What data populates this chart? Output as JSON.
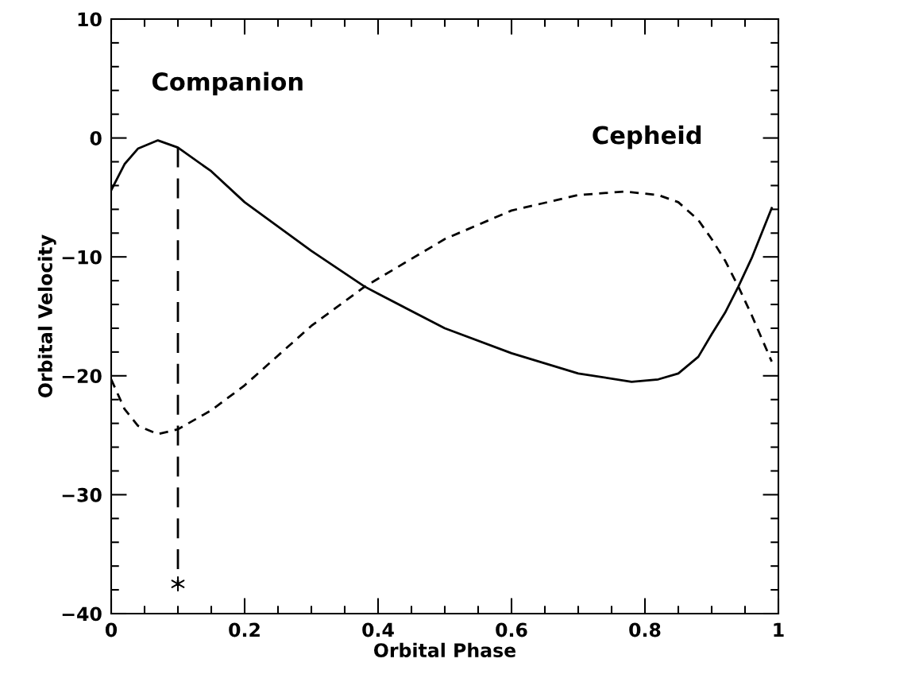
{
  "chart_data": {
    "type": "line",
    "xlabel": "Orbital Phase",
    "ylabel": "Orbital Velocity",
    "xlim": [
      0,
      1
    ],
    "ylim": [
      -40,
      10
    ],
    "xticks": [
      0,
      0.2,
      0.4,
      0.6,
      0.8,
      1
    ],
    "yticks": [
      -40,
      -30,
      -20,
      -10,
      0,
      10
    ],
    "grid": false,
    "legend": false,
    "marker": "none",
    "series": [
      {
        "name": "Companion",
        "color": "#000000",
        "line_style": "solid",
        "x": [
          0,
          0.02,
          0.04,
          0.07,
          0.1,
          0.15,
          0.2,
          0.3,
          0.38,
          0.4,
          0.5,
          0.6,
          0.7,
          0.78,
          0.82,
          0.85,
          0.88,
          0.9,
          0.92,
          0.94,
          0.96,
          0.99
        ],
        "values": [
          -4.4,
          -2.2,
          -0.9,
          -0.2,
          -0.8,
          -2.8,
          -5.4,
          -9.5,
          -12.5,
          -13.1,
          -16,
          -18.1,
          -19.8,
          -20.5,
          -20.3,
          -19.8,
          -18.4,
          -16.5,
          -14.7,
          -12.5,
          -10.1,
          -5.9
        ]
      },
      {
        "name": "Cepheid",
        "color": "#000000",
        "line_style": "dashed",
        "x": [
          0,
          0.02,
          0.04,
          0.07,
          0.1,
          0.15,
          0.2,
          0.3,
          0.38,
          0.5,
          0.6,
          0.7,
          0.77,
          0.82,
          0.85,
          0.88,
          0.9,
          0.92,
          0.94,
          0.96,
          0.99
        ],
        "values": [
          -20.3,
          -22.8,
          -24.2,
          -24.9,
          -24.5,
          -22.9,
          -20.8,
          -15.8,
          -12.5,
          -8.5,
          -6.1,
          -4.8,
          -4.5,
          -4.8,
          -5.4,
          -6.9,
          -8.5,
          -10.3,
          -12.5,
          -14.9,
          -18.8
        ]
      },
      {
        "type": "line",
        "color": "#000000",
        "line_style": "dashed",
        "x": [
          0.1,
          0.1
        ],
        "values": [
          -0.8,
          -37.5
        ]
      },
      {
        "type": "scatter",
        "color": "#000000",
        "marker": "cross",
        "x": [
          0.1
        ],
        "values": [
          -37.5
        ]
      }
    ]
  }
}
